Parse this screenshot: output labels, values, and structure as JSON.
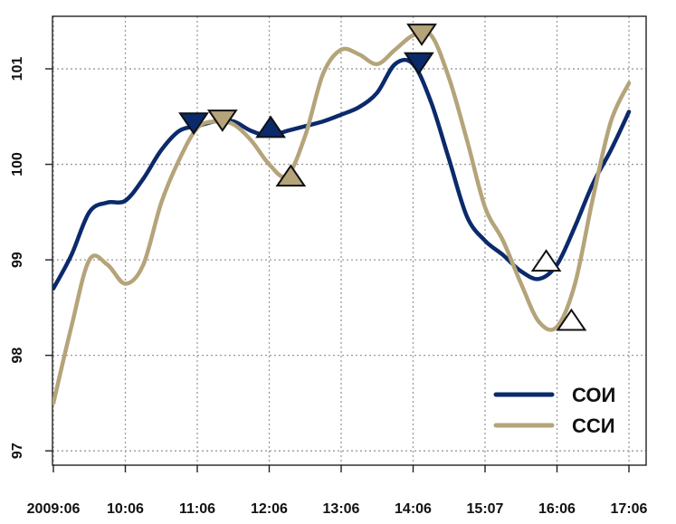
{
  "chart_data": {
    "type": "line",
    "title": "",
    "xlabel": "",
    "ylabel": "",
    "x_tick_labels": [
      "2009:06",
      "10:06",
      "11:06",
      "12:06",
      "13:06",
      "14:06",
      "15:07",
      "16:06",
      "17:06"
    ],
    "x_range": [
      0,
      8
    ],
    "ylim": [
      96.85,
      101.55
    ],
    "y_ticks": [
      97,
      98,
      99,
      100,
      101
    ],
    "y_tick_labels": [
      "97",
      "98",
      "99",
      "100",
      "101"
    ],
    "grid": true,
    "legend_position": "bottom-right",
    "series": [
      {
        "name": "СОИ",
        "color": "#0b2a6b",
        "x": [
          0,
          0.25,
          0.5,
          0.75,
          1.0,
          1.25,
          1.5,
          1.75,
          2.0,
          2.25,
          2.5,
          2.75,
          3.0,
          3.25,
          3.5,
          3.75,
          4.0,
          4.25,
          4.5,
          4.75,
          5.0,
          5.25,
          5.5,
          5.75,
          6.0,
          6.25,
          6.5,
          6.75,
          7.0,
          7.25,
          7.5,
          7.75,
          8.0
        ],
        "values": [
          98.7,
          99.05,
          99.5,
          99.6,
          99.62,
          99.85,
          100.15,
          100.35,
          100.4,
          100.45,
          100.45,
          100.35,
          100.3,
          100.35,
          100.4,
          100.45,
          100.52,
          100.6,
          100.75,
          101.05,
          101.05,
          100.65,
          100.05,
          99.45,
          99.2,
          99.05,
          98.88,
          98.8,
          98.95,
          99.35,
          99.8,
          100.15,
          100.55
        ]
      },
      {
        "name": "ССИ",
        "color": "#b5a47a",
        "x": [
          0,
          0.25,
          0.5,
          0.75,
          1.0,
          1.25,
          1.5,
          1.75,
          2.0,
          2.25,
          2.5,
          2.75,
          3.0,
          3.25,
          3.5,
          3.75,
          4.0,
          4.25,
          4.5,
          4.75,
          5.0,
          5.25,
          5.5,
          5.75,
          6.0,
          6.25,
          6.5,
          6.75,
          7.0,
          7.25,
          7.5,
          7.75,
          8.0
        ],
        "values": [
          97.5,
          98.3,
          99.0,
          98.95,
          98.75,
          98.95,
          99.6,
          100.05,
          100.38,
          100.45,
          100.42,
          100.25,
          100.0,
          99.88,
          100.3,
          100.95,
          101.2,
          101.15,
          101.05,
          101.2,
          101.35,
          101.35,
          100.9,
          100.25,
          99.55,
          99.2,
          98.75,
          98.35,
          98.3,
          98.75,
          99.65,
          100.45,
          100.85
        ]
      }
    ],
    "markers": [
      {
        "series": "СОИ",
        "shape": "triangle-down",
        "filled": true,
        "x": 1.95,
        "y": 100.45
      },
      {
        "series": "ССИ",
        "shape": "triangle-down",
        "filled": true,
        "x": 2.35,
        "y": 100.48
      },
      {
        "series": "СОИ",
        "shape": "triangle-up",
        "filled": true,
        "x": 3.02,
        "y": 100.37
      },
      {
        "series": "ССИ",
        "shape": "triangle-up",
        "filled": true,
        "x": 3.3,
        "y": 99.86
      },
      {
        "series": "СОИ",
        "shape": "triangle-down",
        "filled": true,
        "x": 5.08,
        "y": 101.08
      },
      {
        "series": "ССИ",
        "shape": "triangle-down",
        "filled": true,
        "x": 5.12,
        "y": 101.38
      },
      {
        "series": "СОИ",
        "shape": "triangle-up",
        "filled": false,
        "x": 6.85,
        "y": 98.97
      },
      {
        "series": "ССИ",
        "shape": "triangle-up",
        "filled": false,
        "x": 7.2,
        "y": 98.35
      }
    ]
  }
}
